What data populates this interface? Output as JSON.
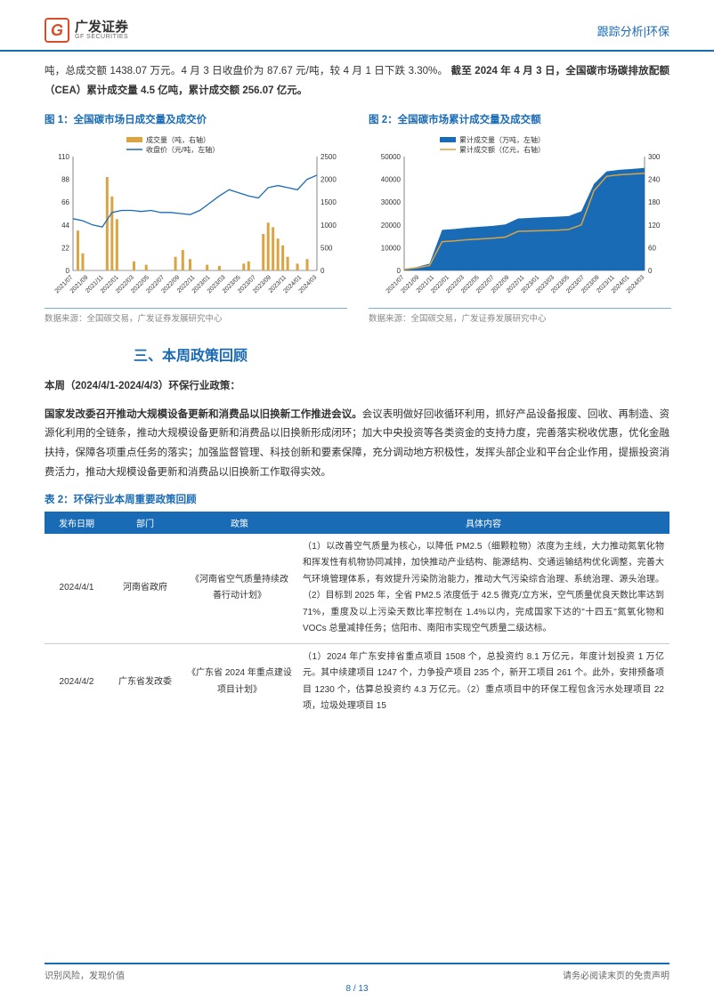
{
  "header": {
    "logo_cn": "广发证券",
    "logo_en": "GF SECURITIES",
    "right": "跟踪分析|环保"
  },
  "intro": {
    "line1": "吨，总成交额 1438.07 万元。4 月 3 日收盘价为 87.67 元/吨，较 4 月 1 日下跌 3.30%。",
    "line2": "截至 2024 年 4 月 3 日，全国碳市场碳排放配额（CEA）累计成交量 4.5 亿吨，累计成交额 256.07 亿元。"
  },
  "chart1": {
    "title": "图 1：全国碳市场日成交量及成交价",
    "legend_vol": "成交量（吨，右轴）",
    "legend_price": "收盘价（元/吨，左轴）",
    "source": "数据来源：全国碳交易，广发证券发展研究中心",
    "y_left": {
      "min": 0,
      "max": 110,
      "ticks": [
        0,
        22,
        44,
        66,
        88,
        110
      ]
    },
    "y_right": {
      "min": 0,
      "max": 2500,
      "ticks": [
        0,
        500,
        1000,
        1500,
        2000,
        2500
      ]
    },
    "x_labels": [
      "2021/07",
      "2021/09",
      "2021/11",
      "2022/01",
      "2022/03",
      "2022/05",
      "2022/07",
      "2022/09",
      "2022/11",
      "2023/01",
      "2023/03",
      "2023/05",
      "2023/07",
      "2023/09",
      "2023/11",
      "2024/01",
      "2024/03"
    ],
    "price_series": [
      50,
      48,
      44,
      42,
      56,
      58,
      58,
      57,
      58,
      56,
      56,
      55,
      54,
      58,
      65,
      72,
      78,
      75,
      72,
      70,
      80,
      82,
      80,
      78,
      88,
      92
    ],
    "price_color": "#1a6bb6",
    "volume_peaks": [
      {
        "x": 0.02,
        "h": 0.35
      },
      {
        "x": 0.04,
        "h": 0.15
      },
      {
        "x": 0.14,
        "h": 0.82
      },
      {
        "x": 0.16,
        "h": 0.65
      },
      {
        "x": 0.18,
        "h": 0.45
      },
      {
        "x": 0.25,
        "h": 0.08
      },
      {
        "x": 0.3,
        "h": 0.05
      },
      {
        "x": 0.42,
        "h": 0.12
      },
      {
        "x": 0.45,
        "h": 0.18
      },
      {
        "x": 0.48,
        "h": 0.1
      },
      {
        "x": 0.55,
        "h": 0.05
      },
      {
        "x": 0.6,
        "h": 0.04
      },
      {
        "x": 0.7,
        "h": 0.06
      },
      {
        "x": 0.72,
        "h": 0.08
      },
      {
        "x": 0.78,
        "h": 0.32
      },
      {
        "x": 0.8,
        "h": 0.42
      },
      {
        "x": 0.82,
        "h": 0.38
      },
      {
        "x": 0.84,
        "h": 0.28
      },
      {
        "x": 0.86,
        "h": 0.22
      },
      {
        "x": 0.88,
        "h": 0.12
      },
      {
        "x": 0.92,
        "h": 0.06
      },
      {
        "x": 0.96,
        "h": 0.1
      }
    ],
    "volume_color": "#d9a441",
    "bg": "#ffffff",
    "grid_color": "#d0d0d0"
  },
  "chart2": {
    "title": "图 2：全国碳市场累计成交量及成交额",
    "legend_vol": "累计成交量（万吨，左轴）",
    "legend_amt": "累计成交额（亿元，右轴）",
    "source": "数据来源：全国碳交易，广发证券发展研究中心",
    "y_left": {
      "min": 0,
      "max": 50000,
      "ticks": [
        0,
        10000,
        20000,
        30000,
        40000,
        50000
      ]
    },
    "y_right": {
      "min": 0,
      "max": 300,
      "ticks": [
        0,
        60,
        120,
        180,
        240,
        300
      ]
    },
    "x_labels": [
      "2021/07",
      "2021/09",
      "2021/11",
      "2022/01",
      "2022/03",
      "2022/05",
      "2022/07",
      "2022/09",
      "2022/11",
      "2023/01",
      "2023/03",
      "2023/05",
      "2023/07",
      "2023/09",
      "2023/11",
      "2024/01",
      "2024/03"
    ],
    "cum_vol": [
      600,
      1500,
      3000,
      17800,
      18200,
      18800,
      19200,
      19600,
      20200,
      22800,
      23100,
      23400,
      23600,
      23900,
      26000,
      38000,
      43500,
      44200,
      44600,
      45000
    ],
    "cum_amt": [
      3,
      7,
      13,
      76,
      78,
      81,
      83,
      85,
      88,
      103,
      104,
      105,
      106,
      108,
      120,
      210,
      248,
      252,
      254,
      256
    ],
    "area_color": "#1a6bb6",
    "line_color": "#d9a441",
    "bg": "#ffffff",
    "grid_color": "#d0d0d0"
  },
  "section3": {
    "heading": "三、本周政策回顾",
    "week_line": "本周（2024/4/1-2024/4/3）环保行业政策：",
    "para_bold": "国家发改委召开推动大规模设备更新和消费品以旧换新工作推进会议。",
    "para_rest": "会议表明做好回收循环利用，抓好产品设备报废、回收、再制造、资源化利用的全链条，推动大规模设备更新和消费品以旧换新形成闭环；加大中央投资等各类资金的支持力度，完善落实税收优惠，优化金融扶持，保障各项重点任务的落实；加强监督管理、科技创新和要素保障，充分调动地方积极性，发挥头部企业和平台企业作用，提振投资消费活力，推动大规模设备更新和消费品以旧换新工作取得实效。"
  },
  "table": {
    "title": "表 2：环保行业本周重要政策回顾",
    "headers": [
      "发布日期",
      "部门",
      "政策",
      "具体内容"
    ],
    "rows": [
      {
        "date": "2024/4/1",
        "dept": "河南省政府",
        "policy": "《河南省空气质量持续改善行动计划》",
        "content": "（1）以改善空气质量为核心，以降低 PM2.5（细颗粒物）浓度为主线，大力推动氮氧化物和挥发性有机物协同减排，加快推动产业结构、能源结构、交通运输结构优化调整，完善大气环境管理体系，有效提升污染防治能力，推动大气污染综合治理、系统治理、源头治理。（2）目标到 2025 年，全省 PM2.5 浓度低于 42.5 微克/立方米，空气质量优良天数比率达到 71%，重度及以上污染天数比率控制在 1.4%以内，完成国家下达的\"十四五\"氮氧化物和 VOCs 总量减排任务；信阳市、南阳市实现空气质量二级达标。"
      },
      {
        "date": "2024/4/2",
        "dept": "广东省发改委",
        "policy": "《广东省 2024 年重点建设项目计划》",
        "content": "（1）2024 年广东安排省重点项目 1508 个，总投资约 8.1 万亿元，年度计划投资 1 万亿元。其中续建项目 1247 个，力争投产项目 235 个，新开工项目 261 个。此外，安排预备项目 1230 个，估算总投资约 4.3 万亿元。（2）重点项目中的环保工程包含污水处理项目 22 项，垃圾处理项目 15"
      }
    ]
  },
  "footer": {
    "left": "识别风险，发现价值",
    "right": "请务必阅读末页的免责声明",
    "page": "8 / 13"
  }
}
